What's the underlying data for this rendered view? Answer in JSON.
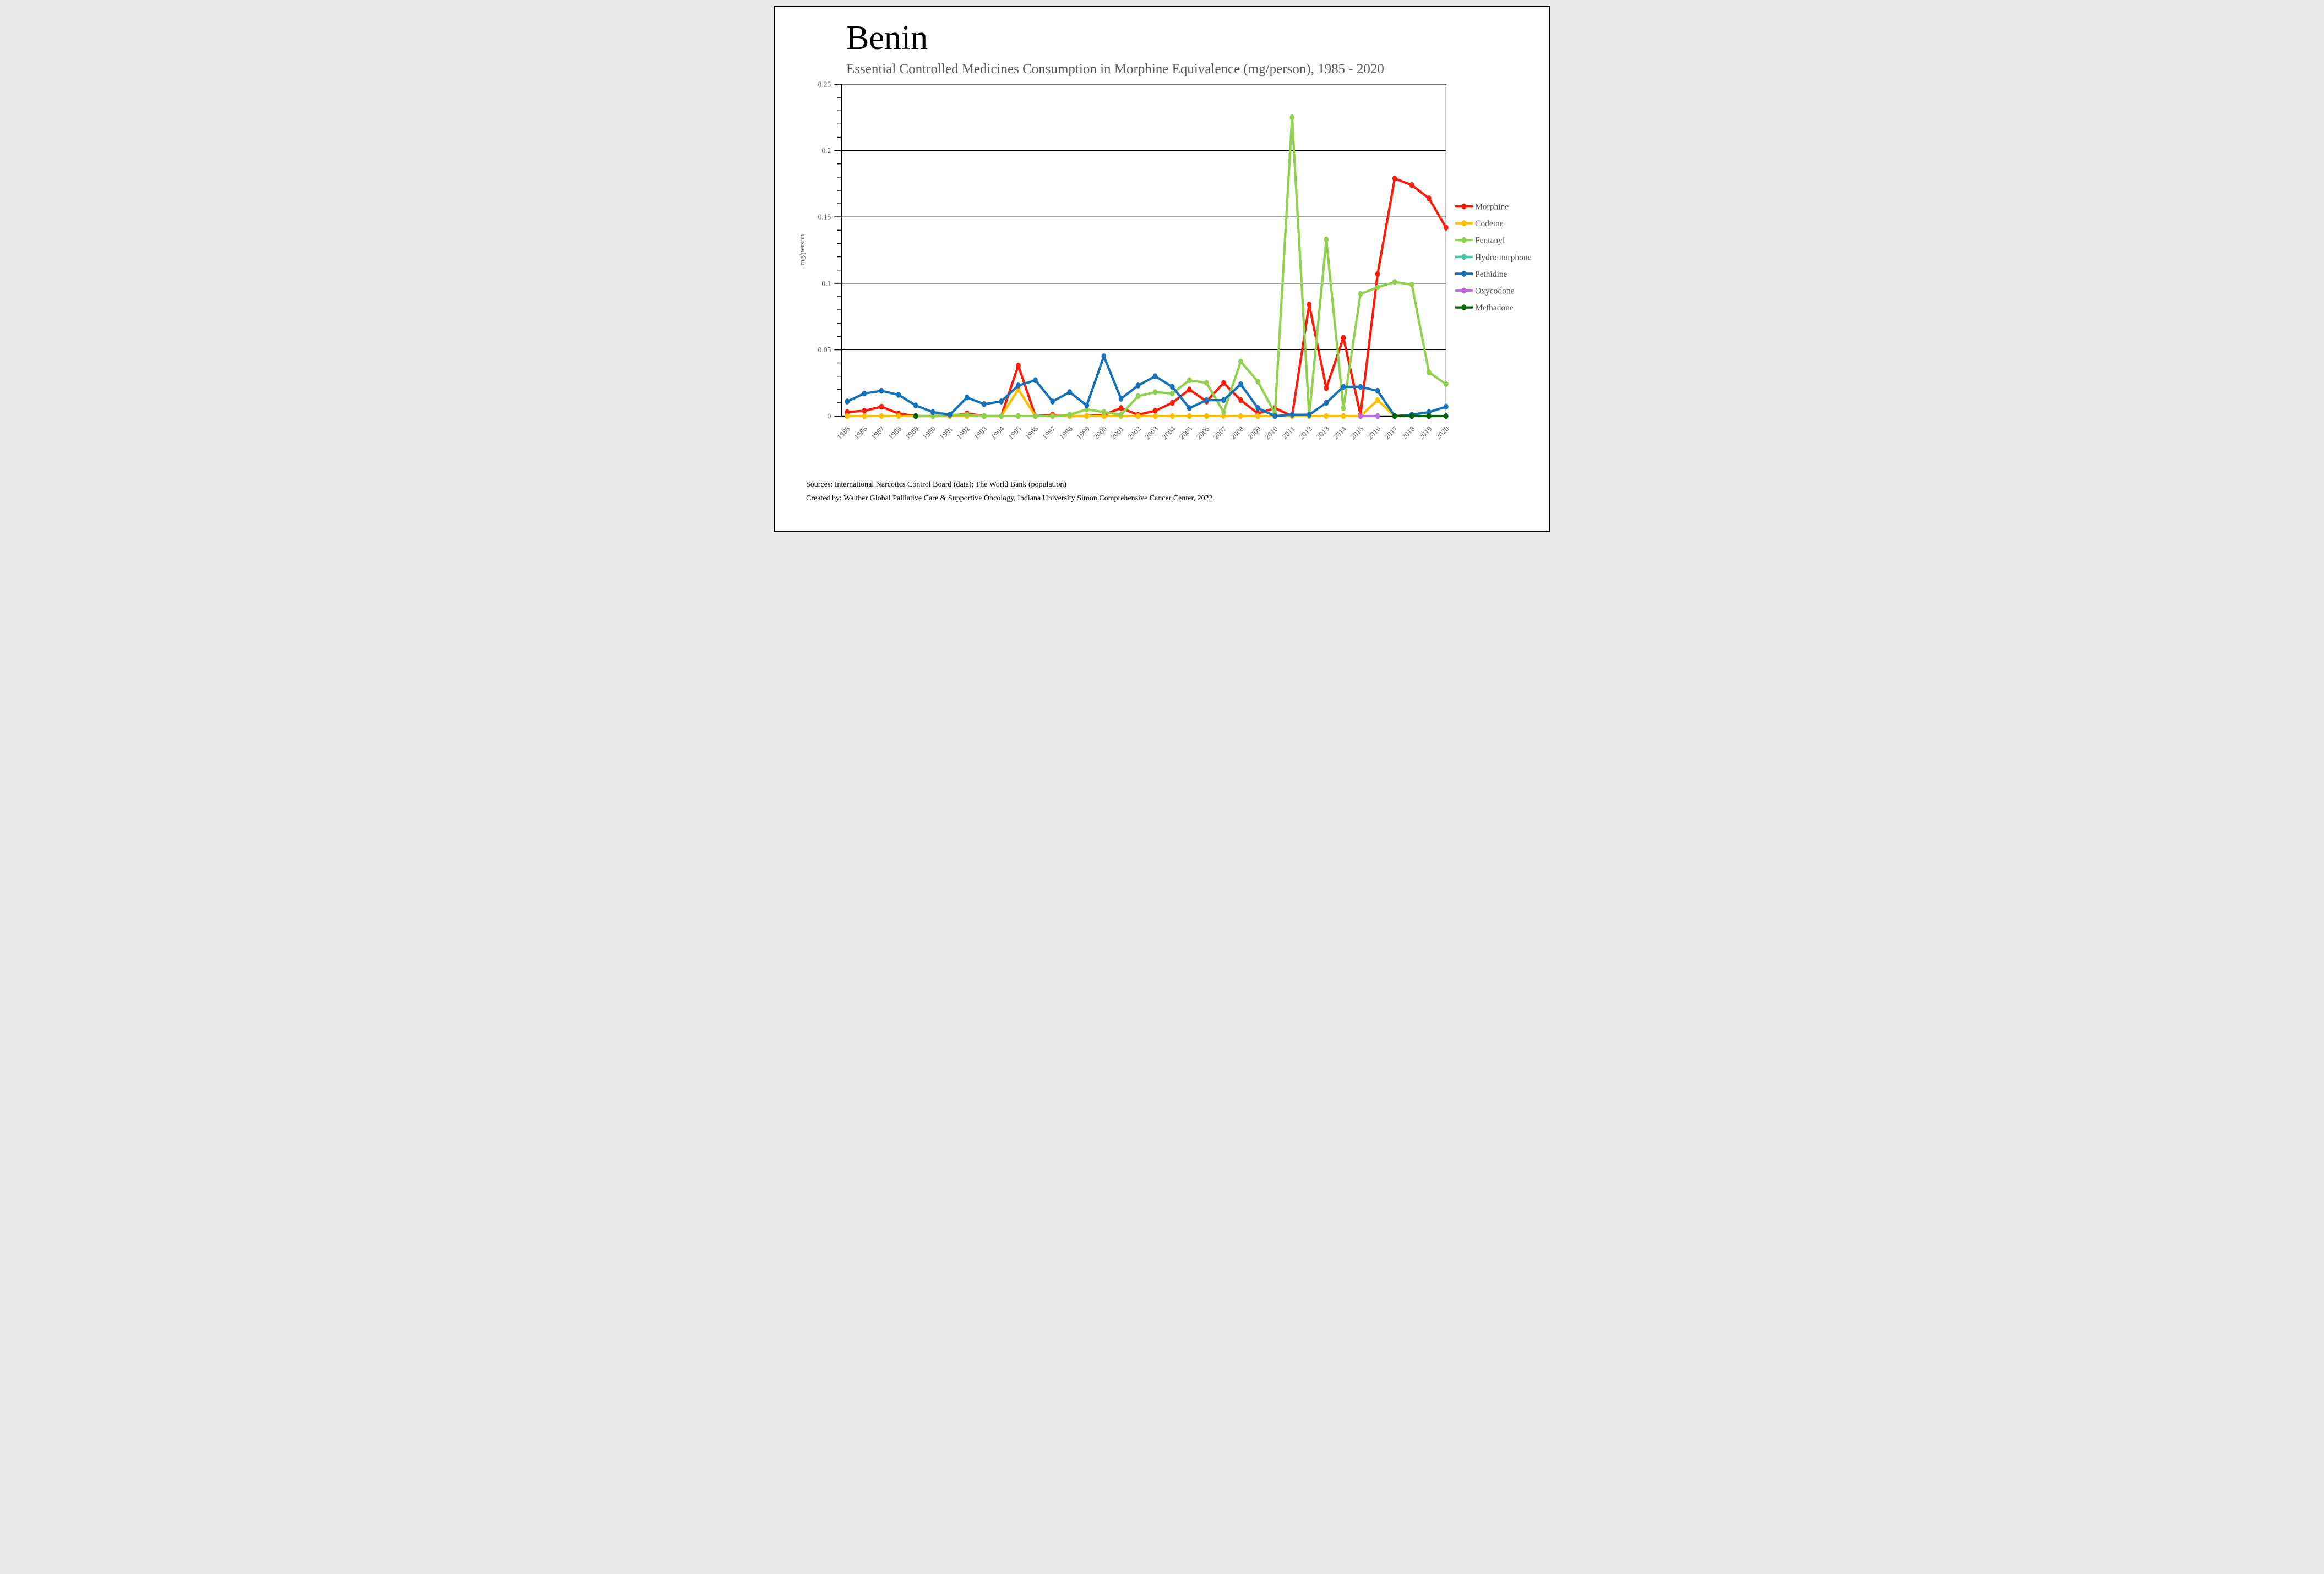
{
  "title": "Benin",
  "subtitle": "Essential Controlled Medicines Consumption in Morphine Equivalence (mg/person), 1985 - 2020",
  "y_axis_label": "mg/person",
  "sources": {
    "line1": "Sources: International Narcotics Control Board (data); The World Bank (population)",
    "line2": "Created by: Walther Global Palliative Care & Supportive Oncology, Indiana University Simon Comprehensive Cancer Center, 2022"
  },
  "colors": {
    "text_gray": "#595959",
    "grid": "#000000",
    "axis": "#000000",
    "background": "#ffffff"
  },
  "chart_data": {
    "type": "line",
    "title": "Benin",
    "xlabel": "",
    "ylabel": "mg/person",
    "ylim": [
      0,
      0.25
    ],
    "y_ticks": [
      0,
      0.05,
      0.1,
      0.15,
      0.2,
      0.25
    ],
    "y_tick_labels": [
      "0",
      "0.05",
      "0.1",
      "0.15",
      "0.2",
      "0.25"
    ],
    "y_minor_tick_step": 0.01,
    "grid": "horizontal",
    "legend_position": "right",
    "x": [
      1985,
      1986,
      1987,
      1988,
      1989,
      1990,
      1991,
      1992,
      1993,
      1994,
      1995,
      1996,
      1997,
      1998,
      1999,
      2000,
      2001,
      2002,
      2003,
      2004,
      2005,
      2006,
      2007,
      2008,
      2009,
      2010,
      2011,
      2012,
      2013,
      2014,
      2015,
      2016,
      2017,
      2018,
      2019,
      2020
    ],
    "series": [
      {
        "name": "Morphine",
        "color": "#FB1B09",
        "values": [
          0.003,
          0.004,
          0.007,
          0.002,
          0,
          0,
          0,
          0.002,
          0,
          0,
          0.038,
          0,
          0.001,
          0,
          0,
          0.001,
          0.006,
          0.001,
          0.004,
          0.01,
          0.02,
          0.011,
          0.025,
          0.012,
          0.002,
          0.006,
          0,
          0.084,
          0.021,
          0.059,
          0.001,
          0.107,
          0.179,
          0.174,
          0.164,
          0.142
        ]
      },
      {
        "name": "Codeine",
        "color": "#FFC000",
        "values": [
          0,
          0,
          0,
          0,
          0,
          0,
          0,
          0,
          0,
          0,
          0.02,
          0,
          0,
          0,
          0,
          0,
          0,
          0,
          0,
          0,
          0,
          0,
          0,
          0,
          0,
          0,
          0,
          0,
          0,
          0,
          0,
          0.012,
          0,
          null,
          null,
          null
        ]
      },
      {
        "name": "Fentanyl",
        "color": "#92D050",
        "values": [
          null,
          null,
          null,
          null,
          0,
          0,
          0.001,
          0.001,
          0,
          0,
          0,
          0,
          0,
          0.001,
          0.005,
          0.003,
          0.001,
          0.015,
          0.018,
          0.017,
          0.027,
          0.025,
          0.003,
          0.041,
          0.026,
          0.002,
          0.225,
          0,
          0.133,
          0.006,
          0.092,
          0.097,
          0.101,
          0.099,
          0.033,
          0.024
        ]
      },
      {
        "name": "Hydromorphone",
        "color": "#4EC3A6",
        "values": [
          null,
          null,
          null,
          null,
          null,
          null,
          null,
          null,
          null,
          null,
          null,
          null,
          null,
          null,
          null,
          null,
          null,
          null,
          null,
          null,
          null,
          null,
          null,
          null,
          null,
          null,
          null,
          null,
          null,
          null,
          null,
          null,
          null,
          null,
          null,
          null
        ]
      },
      {
        "name": "Pethidine",
        "color": "#1572B8",
        "values": [
          0.011,
          0.017,
          0.019,
          0.016,
          0.008,
          0.003,
          0.001,
          0.014,
          0.009,
          0.011,
          0.023,
          0.027,
          0.011,
          0.018,
          0.008,
          0.045,
          0.013,
          0.023,
          0.03,
          0.022,
          0.006,
          0.012,
          0.012,
          0.024,
          0.006,
          0,
          0.001,
          0.001,
          0.01,
          0.022,
          0.022,
          0.019,
          0,
          0.001,
          0.003,
          0.007
        ]
      },
      {
        "name": "Oxycodone",
        "color": "#BD6CDD",
        "values": [
          null,
          null,
          null,
          null,
          null,
          null,
          null,
          null,
          null,
          null,
          null,
          null,
          null,
          null,
          null,
          null,
          null,
          null,
          null,
          null,
          null,
          null,
          null,
          null,
          null,
          null,
          null,
          null,
          null,
          null,
          0,
          0,
          null,
          null,
          null,
          null
        ]
      },
      {
        "name": "Methadone",
        "color": "#046309",
        "values": [
          null,
          null,
          null,
          null,
          0,
          null,
          null,
          null,
          null,
          null,
          null,
          null,
          null,
          null,
          null,
          null,
          null,
          null,
          null,
          null,
          null,
          null,
          null,
          null,
          null,
          null,
          null,
          null,
          null,
          null,
          null,
          null,
          0,
          0,
          0,
          0
        ]
      }
    ]
  }
}
